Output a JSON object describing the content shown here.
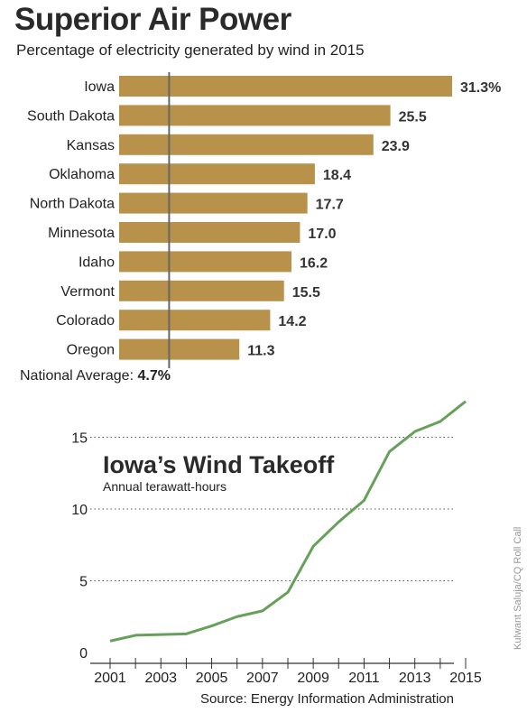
{
  "header": {
    "title": "Superior Air Power",
    "subtitle": "Percentage of electricity generated by wind in 2015"
  },
  "bar_chart": {
    "national_average_label": "National Average:",
    "national_average_value": "4.7%"
  },
  "line_chart": {
    "title": "Iowa’s Wind Takeoff",
    "subtitle": "Annual terawatt-hours"
  },
  "footer": {
    "source": "Source: Energy Information Administration",
    "credit": "Kulwant Saluja/CQ Roll Call"
  },
  "colors": {
    "bar": "#b8924a",
    "line": "#66a05a",
    "average_line": "#666666"
  },
  "chart_data": [
    {
      "type": "bar",
      "orientation": "horizontal",
      "title": "Superior Air Power",
      "subtitle": "Percentage of electricity generated by wind in 2015",
      "categories": [
        "Iowa",
        "South Dakota",
        "Kansas",
        "Oklahoma",
        "North Dakota",
        "Minnesota",
        "Idaho",
        "Vermont",
        "Colorado",
        "Oregon"
      ],
      "values": [
        31.3,
        25.5,
        23.9,
        18.4,
        17.7,
        17.0,
        16.2,
        15.5,
        14.2,
        11.3
      ],
      "value_labels": [
        "31.3%",
        "25.5",
        "23.9",
        "18.4",
        "17.7",
        "17.0",
        "16.2",
        "15.5",
        "14.2",
        "11.3"
      ],
      "reference_line": {
        "label": "National Average:",
        "value": 4.7,
        "display": "4.7%"
      },
      "xlim": [
        0,
        31.3
      ],
      "grid": false
    },
    {
      "type": "line",
      "title": "Iowa’s Wind Takeoff",
      "subtitle": "Annual terawatt-hours",
      "x": [
        2001,
        2002,
        2003,
        2004,
        2005,
        2006,
        2007,
        2008,
        2009,
        2010,
        2011,
        2012,
        2013,
        2014,
        2015
      ],
      "values": [
        0.8,
        1.2,
        1.25,
        1.3,
        1.85,
        2.5,
        2.9,
        4.2,
        7.4,
        9.1,
        10.6,
        14.0,
        15.4,
        16.1,
        17.5
      ],
      "xticks": [
        "2001",
        "2003",
        "2005",
        "2007",
        "2009",
        "2011",
        "2013",
        "2015"
      ],
      "yticks": [
        "0",
        "5",
        "10",
        "15"
      ],
      "ylim": [
        0,
        17.5
      ],
      "xlim": [
        2001,
        2015
      ],
      "grid": "horizontal dotted"
    }
  ]
}
